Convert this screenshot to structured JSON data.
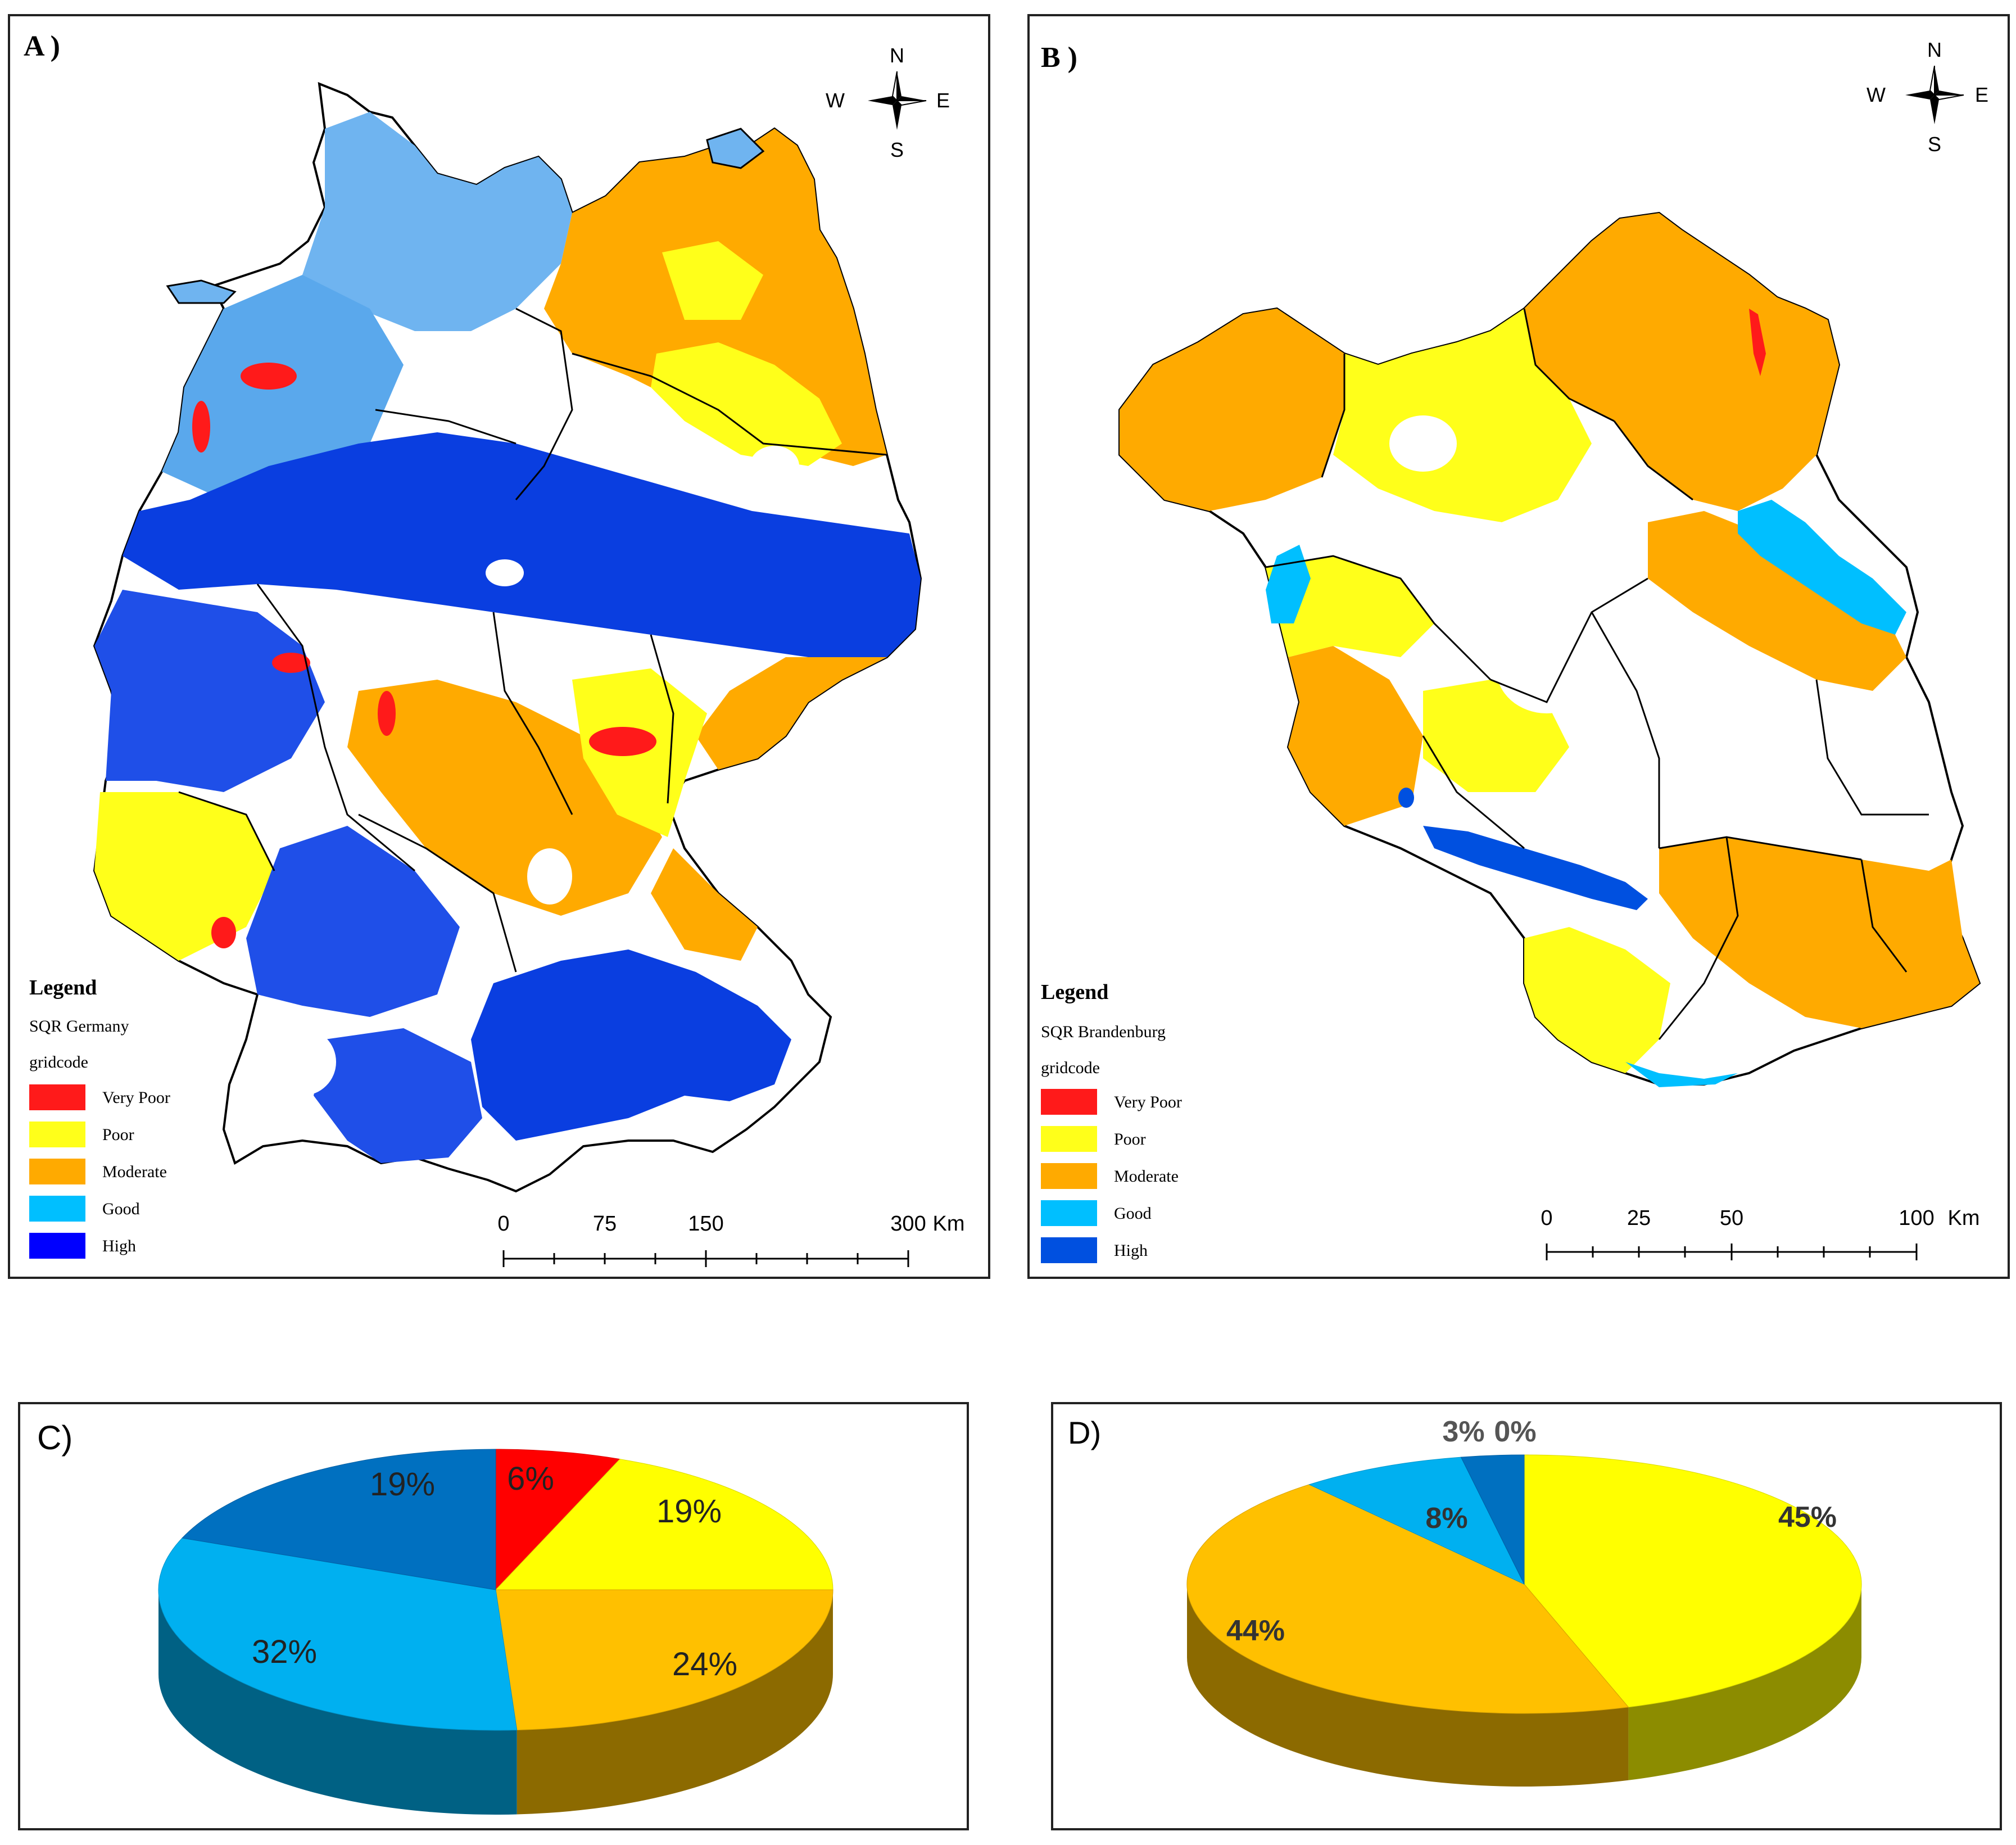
{
  "panel_a": {
    "label": "A )",
    "compass": {
      "n": "N",
      "s": "S",
      "e": "E",
      "w": "W"
    },
    "legend": {
      "title": "Legend",
      "layer": "SQR Germany",
      "field": "gridcode",
      "items": [
        {
          "label": "Very Poor",
          "color": "#ff1a1a"
        },
        {
          "label": "Poor",
          "color": "#ffff1a"
        },
        {
          "label": "Moderate",
          "color": "#ffaa00"
        },
        {
          "label": "Good",
          "color": "#00bfff"
        },
        {
          "label": "High",
          "color": "#0000ff"
        }
      ]
    },
    "scale": {
      "ticks": [
        "0",
        "75",
        "150",
        "300"
      ],
      "unit": "Km"
    }
  },
  "panel_b": {
    "label": "B )",
    "compass": {
      "n": "N",
      "s": "S",
      "e": "E",
      "w": "W"
    },
    "legend": {
      "title": "Legend",
      "layer": "SQR Brandenburg",
      "field": "gridcode",
      "items": [
        {
          "label": "Very Poor",
          "color": "#ff1a1a"
        },
        {
          "label": "Poor",
          "color": "#ffff1a"
        },
        {
          "label": "Moderate",
          "color": "#ffaa00"
        },
        {
          "label": "Good",
          "color": "#00bfff"
        },
        {
          "label": "High",
          "color": "#0050e0"
        }
      ]
    },
    "scale": {
      "ticks": [
        "0",
        "25",
        "50",
        "100"
      ],
      "unit": "Km"
    }
  },
  "chart_data": [
    {
      "type": "pie",
      "title": "C)",
      "categories": [
        "Very Poor",
        "Poor",
        "Moderate",
        "Good",
        "High"
      ],
      "values": [
        6,
        19,
        24,
        32,
        19
      ],
      "labels": [
        "6%",
        "19%",
        "24%",
        "32%",
        "19%"
      ],
      "colors": [
        "#ff0000",
        "#ffff00",
        "#ffc000",
        "#00b0f0",
        "#0070c0"
      ]
    },
    {
      "type": "pie",
      "title": "D)",
      "categories": [
        "Very Poor",
        "Poor",
        "Moderate",
        "Good",
        "High"
      ],
      "values": [
        0,
        45,
        44,
        8,
        3
      ],
      "labels": [
        "0%",
        "45%",
        "44%",
        "8%",
        "3%"
      ],
      "colors": [
        "#ff0000",
        "#ffff00",
        "#ffc000",
        "#00b0f0",
        "#0070c0"
      ]
    }
  ]
}
